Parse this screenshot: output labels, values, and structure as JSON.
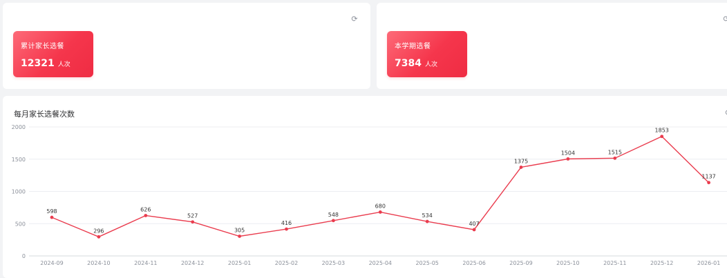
{
  "overview": {
    "refresh_icon": "refresh-icon",
    "cards": [
      {
        "label": "累计家长选餐",
        "value": "12321",
        "unit": "人次"
      },
      {
        "label": "本学期选餐",
        "value": "7384",
        "unit": "人次"
      }
    ]
  },
  "chart_section": {
    "title": "每月家长选餐次数",
    "refresh_icon": "refresh-icon"
  },
  "colors": {
    "accent": "#ea3c4e",
    "card_gradient_start": "#fd6a78",
    "card_gradient_end": "#ef2c43"
  },
  "chart_data": {
    "type": "line",
    "title": "每月家长选餐次数",
    "xlabel": "",
    "ylabel": "",
    "ylim": [
      0,
      2000
    ],
    "yticks": [
      0,
      500,
      1000,
      1500,
      2000
    ],
    "grid": true,
    "categories": [
      "2024-09",
      "2024-10",
      "2024-11",
      "2024-12",
      "2025-01",
      "2025-02",
      "2025-03",
      "2025-04",
      "2025-05",
      "2025-06",
      "2025-09",
      "2025-10",
      "2025-11",
      "2025-12",
      "2026-01"
    ],
    "series": [
      {
        "name": "每月家长选餐次数",
        "values": [
          598,
          296,
          626,
          527,
          305,
          416,
          548,
          680,
          534,
          407,
          1375,
          1504,
          1515,
          1853,
          1137
        ]
      }
    ]
  }
}
